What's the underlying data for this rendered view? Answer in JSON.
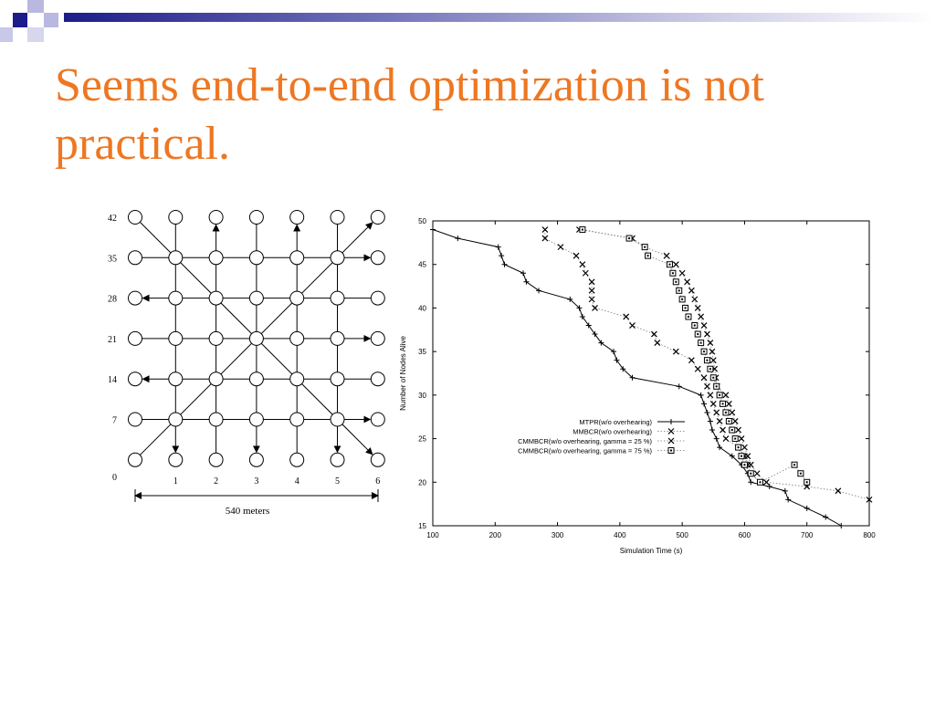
{
  "slide": {
    "title": "Seems end-to-end optimization is not practical."
  },
  "colors": {
    "title": "#ee7722",
    "accent_dark": "#1c1c8a",
    "accent_light": "#8a8ad0"
  },
  "chart_data": [
    {
      "type": "diagram",
      "description_role": "grid network topology",
      "y_tick_labels": [
        "42",
        "35",
        "28",
        "21",
        "14",
        "7",
        "0"
      ],
      "x_tick_labels": [
        "1",
        "2",
        "3",
        "4",
        "5",
        "6"
      ],
      "dimension_label": "540 meters",
      "grid_size": [
        7,
        7
      ]
    },
    {
      "type": "line",
      "xlabel": "Simulation Time (s)",
      "ylabel": "Number of Nodes Alive",
      "xlim": [
        100,
        800
      ],
      "ylim": [
        15,
        50
      ],
      "x_ticks": [
        100,
        200,
        300,
        400,
        500,
        600,
        700,
        800
      ],
      "y_ticks": [
        15,
        20,
        25,
        30,
        35,
        40,
        45,
        50
      ],
      "legend_position": "center-right",
      "series": [
        {
          "name": "MTPR(w/o overhearing)",
          "marker": "+",
          "line": "solid",
          "points": [
            [
              100,
              49
            ],
            [
              140,
              48
            ],
            [
              205,
              47
            ],
            [
              210,
              46
            ],
            [
              215,
              45
            ],
            [
              245,
              44
            ],
            [
              250,
              43
            ],
            [
              270,
              42
            ],
            [
              320,
              41
            ],
            [
              335,
              40
            ],
            [
              340,
              39
            ],
            [
              350,
              38
            ],
            [
              360,
              37
            ],
            [
              370,
              36
            ],
            [
              390,
              35
            ],
            [
              395,
              34
            ],
            [
              405,
              33
            ],
            [
              420,
              32
            ],
            [
              495,
              31
            ],
            [
              530,
              30
            ],
            [
              535,
              29
            ],
            [
              540,
              28
            ],
            [
              545,
              27
            ],
            [
              548,
              26
            ],
            [
              555,
              25
            ],
            [
              560,
              24
            ],
            [
              580,
              23
            ],
            [
              595,
              22
            ],
            [
              605,
              21
            ],
            [
              610,
              20
            ],
            [
              640,
              19.5
            ],
            [
              665,
              19
            ],
            [
              670,
              18
            ],
            [
              700,
              17
            ],
            [
              730,
              16
            ],
            [
              755,
              15
            ]
          ]
        },
        {
          "name": "MMBCR(w/o overhearing)",
          "marker": "x",
          "line": "dotted",
          "points": [
            [
              335,
              49
            ],
            [
              420,
              48
            ],
            [
              440,
              47
            ],
            [
              475,
              46
            ],
            [
              490,
              45
            ],
            [
              500,
              44
            ],
            [
              508,
              43
            ],
            [
              515,
              42
            ],
            [
              520,
              41
            ],
            [
              525,
              40
            ],
            [
              530,
              39
            ],
            [
              535,
              38
            ],
            [
              540,
              37
            ],
            [
              545,
              36
            ],
            [
              548,
              35
            ],
            [
              550,
              34
            ],
            [
              552,
              33
            ],
            [
              554,
              32
            ],
            [
              556,
              31
            ],
            [
              570,
              30
            ],
            [
              575,
              29
            ],
            [
              580,
              28
            ],
            [
              585,
              27
            ],
            [
              590,
              26
            ],
            [
              595,
              25
            ],
            [
              600,
              24
            ],
            [
              605,
              23
            ],
            [
              610,
              22
            ],
            [
              620,
              21
            ],
            [
              635,
              20
            ],
            [
              700,
              19.5
            ],
            [
              750,
              19
            ],
            [
              800,
              18
            ]
          ]
        },
        {
          "name": "CMMBCR(w/o overhearing, gamma = 25 %)",
          "marker": "x",
          "line": "dotted",
          "points": [
            [
              280,
              49
            ],
            [
              280,
              48
            ],
            [
              305,
              47
            ],
            [
              330,
              46
            ],
            [
              340,
              45
            ],
            [
              345,
              44
            ],
            [
              355,
              43
            ],
            [
              355,
              42
            ],
            [
              355,
              41
            ],
            [
              360,
              40
            ],
            [
              410,
              39
            ],
            [
              420,
              38
            ],
            [
              455,
              37
            ],
            [
              460,
              36
            ],
            [
              490,
              35
            ],
            [
              515,
              34
            ],
            [
              525,
              33
            ],
            [
              535,
              32
            ],
            [
              540,
              31
            ],
            [
              545,
              30
            ],
            [
              550,
              29
            ],
            [
              555,
              28
            ],
            [
              560,
              27
            ],
            [
              565,
              26
            ],
            [
              570,
              25
            ],
            [
              590,
              24
            ],
            [
              600,
              23
            ],
            [
              605,
              22
            ],
            [
              610,
              21
            ],
            [
              625,
              20
            ]
          ]
        },
        {
          "name": "CMMBCR(w/o overhearing, gamma = 75 %)",
          "marker": "box",
          "line": "dotted",
          "points": [
            [
              340,
              49
            ],
            [
              415,
              48
            ],
            [
              440,
              47
            ],
            [
              445,
              46
            ],
            [
              480,
              45
            ],
            [
              485,
              44
            ],
            [
              490,
              43
            ],
            [
              495,
              42
            ],
            [
              500,
              41
            ],
            [
              505,
              40
            ],
            [
              510,
              39
            ],
            [
              520,
              38
            ],
            [
              525,
              37
            ],
            [
              530,
              36
            ],
            [
              535,
              35
            ],
            [
              540,
              34
            ],
            [
              545,
              33
            ],
            [
              550,
              32
            ],
            [
              555,
              31
            ],
            [
              560,
              30
            ],
            [
              565,
              29
            ],
            [
              570,
              28
            ],
            [
              575,
              27
            ],
            [
              580,
              26
            ],
            [
              585,
              25
            ],
            [
              590,
              24
            ],
            [
              595,
              23
            ],
            [
              600,
              22
            ],
            [
              610,
              21
            ],
            [
              625,
              20
            ],
            [
              680,
              22
            ],
            [
              690,
              21
            ],
            [
              700,
              20
            ]
          ]
        }
      ]
    }
  ]
}
